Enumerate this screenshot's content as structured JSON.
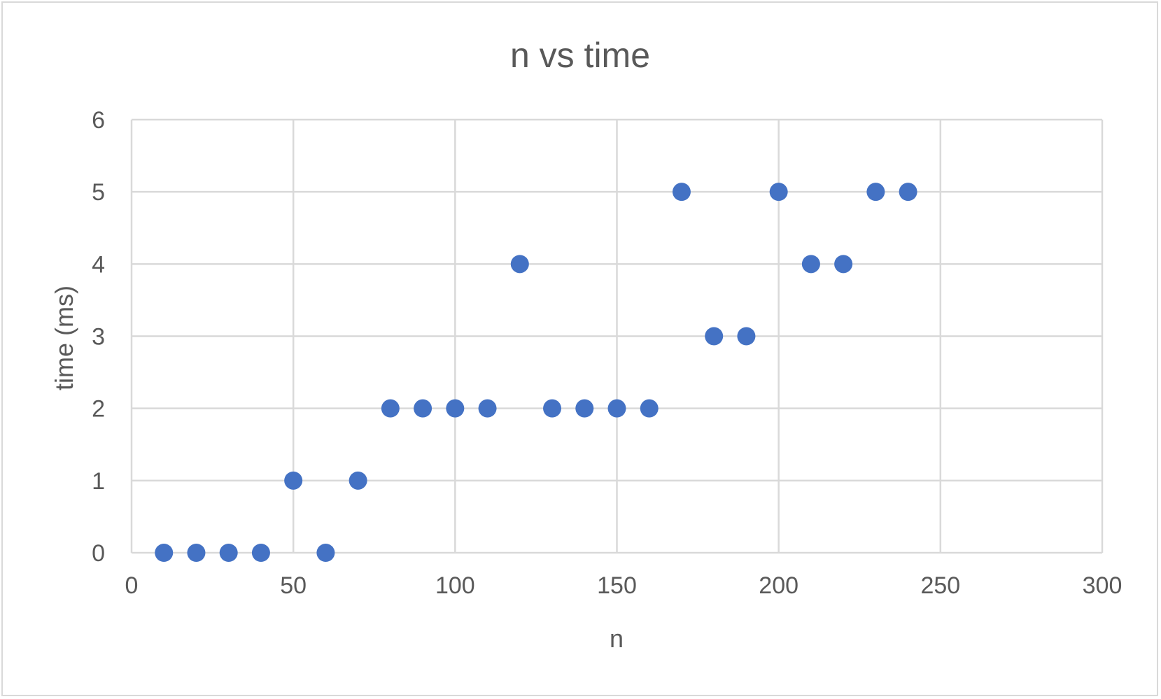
{
  "chart_data": {
    "type": "scatter",
    "title": "n vs time",
    "xlabel": "n",
    "ylabel": "time (ms)",
    "xlim": [
      0,
      300
    ],
    "ylim": [
      0,
      6
    ],
    "xticks": [
      0,
      50,
      100,
      150,
      200,
      250,
      300
    ],
    "yticks": [
      0,
      1,
      2,
      3,
      4,
      5,
      6
    ],
    "grid": true,
    "legend": "none",
    "point_color": "#4472C4",
    "series": [
      {
        "x": [
          10,
          20,
          30,
          40,
          50,
          60,
          70,
          80,
          90,
          100,
          110,
          120,
          130,
          140,
          150,
          160,
          170,
          180,
          190,
          200,
          210,
          220,
          230,
          240
        ],
        "y": [
          0,
          0,
          0,
          0,
          1,
          0,
          1,
          2,
          2,
          2,
          2,
          4,
          2,
          2,
          2,
          2,
          5,
          3,
          3,
          5,
          4,
          4,
          5,
          5
        ]
      }
    ]
  }
}
